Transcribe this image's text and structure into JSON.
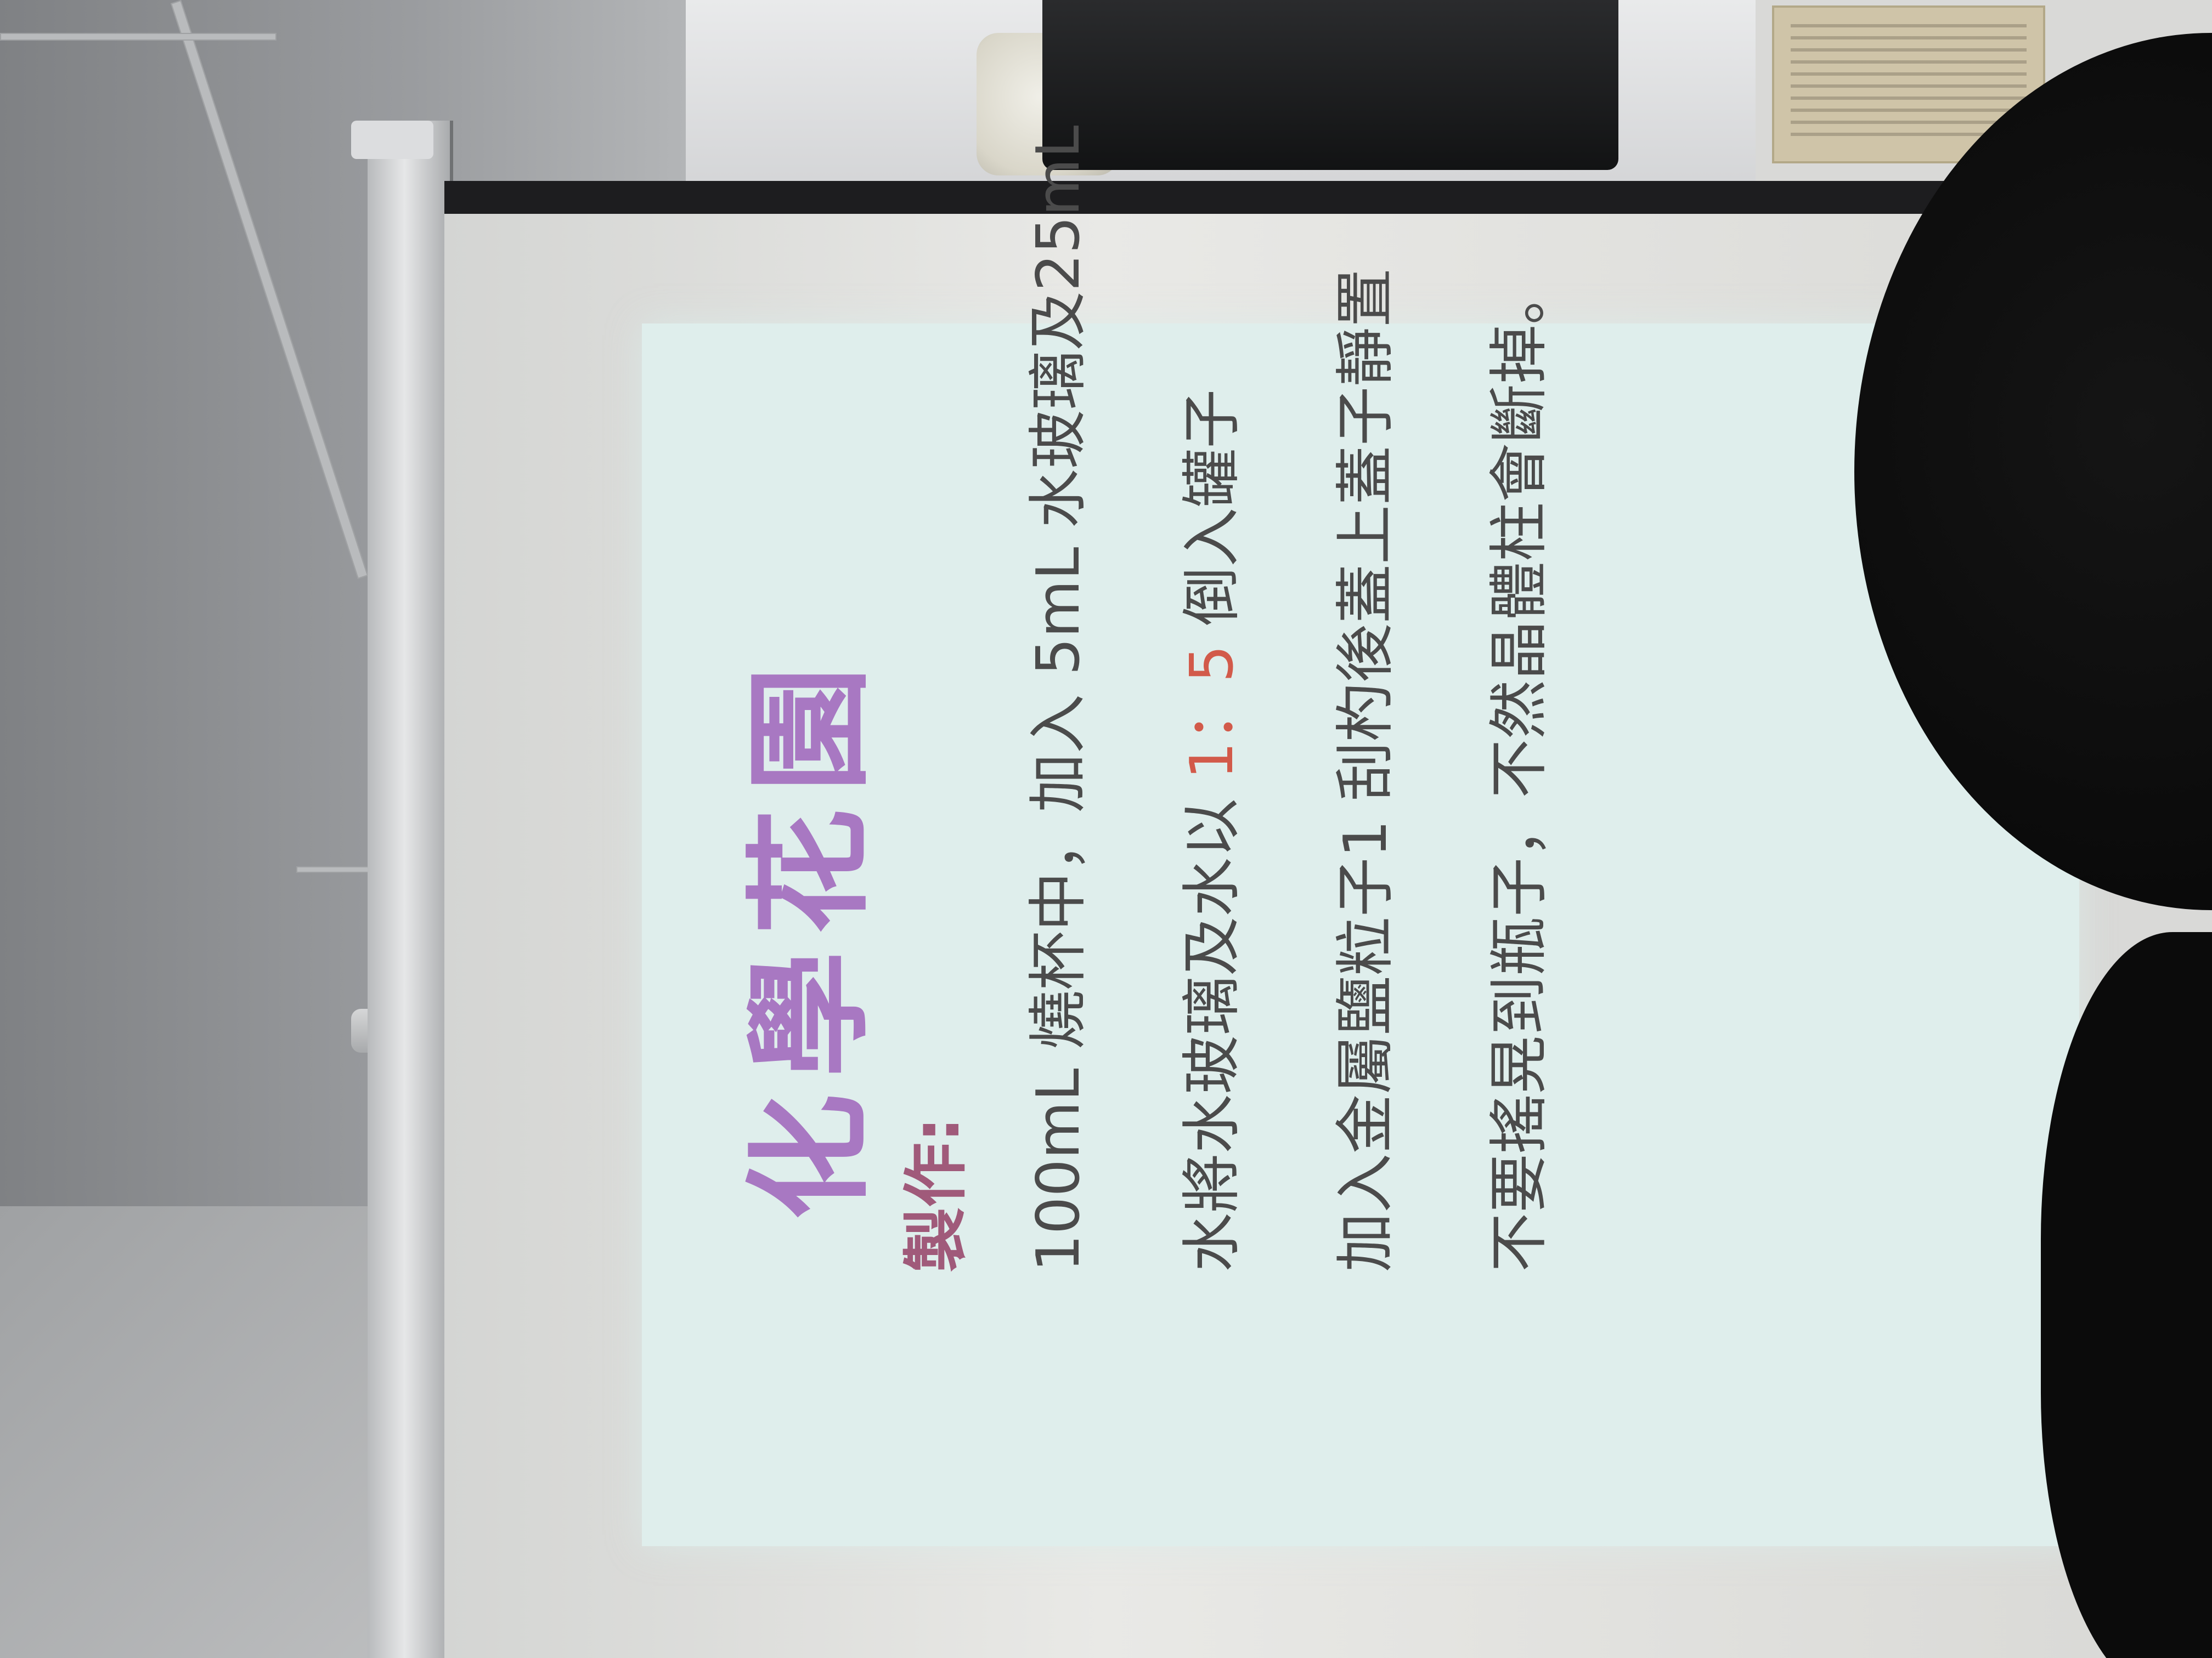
{
  "slide": {
    "title": "化學花園",
    "section_label": "製作:",
    "lines": [
      "100mL 燒杯中，加入 5mL 水玻璃及25mL",
      "水將水玻璃及水以",
      "加入金屬鹽粒子1 刮杓後蓋上蓋子靜置",
      "不要搖晃到瓶子，不然晶體柱會斷掉。"
    ],
    "ratio_text": "1：5",
    "line2_suffix": "倒入罐子"
  },
  "colors": {
    "title": "#a878c2",
    "label": "#a05a7a",
    "body_text": "#4b4b4b",
    "ratio": "#d25a4a",
    "slide_background": "#dfeeec"
  }
}
